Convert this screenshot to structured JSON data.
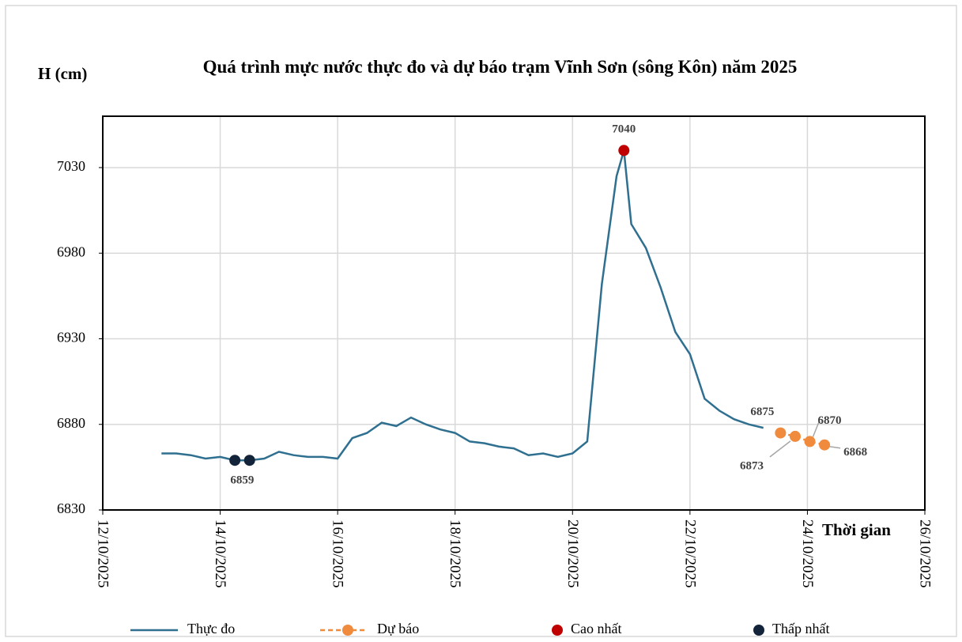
{
  "chart_data": {
    "type": "line",
    "title": "Quá trình mực nước thực đo và dự báo trạm Vĩnh Sơn (sông Kôn) năm 2025",
    "y_label": "H (cm)",
    "x_label": "Thời gian",
    "series": [
      {
        "name": "Thực đo",
        "color": "#2f6f8f",
        "style": "solid",
        "x": [
          "2025-10-13T00:00",
          "2025-10-13T06:00",
          "2025-10-13T12:00",
          "2025-10-13T18:00",
          "2025-10-14T00:00",
          "2025-10-14T06:00",
          "2025-10-14T12:00",
          "2025-10-14T18:00",
          "2025-10-15T00:00",
          "2025-10-15T06:00",
          "2025-10-15T12:00",
          "2025-10-15T18:00",
          "2025-10-16T00:00",
          "2025-10-16T06:00",
          "2025-10-16T12:00",
          "2025-10-16T18:00",
          "2025-10-17T00:00",
          "2025-10-17T06:00",
          "2025-10-17T12:00",
          "2025-10-17T18:00",
          "2025-10-18T00:00",
          "2025-10-18T06:00",
          "2025-10-18T12:00",
          "2025-10-18T18:00",
          "2025-10-19T00:00",
          "2025-10-19T06:00",
          "2025-10-19T12:00",
          "2025-10-19T18:00",
          "2025-10-20T00:00",
          "2025-10-20T06:00",
          "2025-10-20T12:00",
          "2025-10-20T18:00",
          "2025-10-20T21:00",
          "2025-10-21T00:00",
          "2025-10-21T06:00",
          "2025-10-21T12:00",
          "2025-10-21T18:00",
          "2025-10-22T00:00",
          "2025-10-22T06:00",
          "2025-10-22T12:00",
          "2025-10-22T18:00",
          "2025-10-23T00:00",
          "2025-10-23T06:00"
        ],
        "values": [
          6863,
          6863,
          6862,
          6860,
          6861,
          6859,
          6859,
          6860,
          6864,
          6862,
          6861,
          6861,
          6860,
          6872,
          6875,
          6881,
          6879,
          6884,
          6880,
          6877,
          6875,
          6870,
          6869,
          6867,
          6866,
          6862,
          6863,
          6861,
          6863,
          6870,
          6962,
          7025,
          7040,
          6997,
          6983,
          6960,
          6934,
          6921,
          6895,
          6888,
          6883,
          6880,
          6878
        ]
      },
      {
        "name": "Dự báo",
        "color": "#f08a3c",
        "style": "dashed",
        "marker": true,
        "x": [
          "2025-10-23T13:00",
          "2025-10-23T19:00",
          "2025-10-24T01:00",
          "2025-10-24T07:00"
        ],
        "values": [
          6875,
          6873,
          6870,
          6868
        ]
      },
      {
        "name": "Cao nhất",
        "color": "#c00000",
        "style": "none",
        "marker": true,
        "x": [
          "2025-10-20T21:00"
        ],
        "values": [
          7040
        ]
      },
      {
        "name": "Thấp nhất",
        "color": "#13233a",
        "style": "none",
        "marker": true,
        "x": [
          "2025-10-14T06:00",
          "2025-10-14T12:00"
        ],
        "values": [
          6859,
          6859
        ]
      }
    ],
    "xlim": [
      "2025-10-12T00:00",
      "2025-10-26T00:00"
    ],
    "xticks": [
      {
        "value": "2025-10-12T00:00",
        "label": "12/10/2025"
      },
      {
        "value": "2025-10-14T00:00",
        "label": "14/10/2025"
      },
      {
        "value": "2025-10-16T00:00",
        "label": "16/10/2025"
      },
      {
        "value": "2025-10-18T00:00",
        "label": "18/10/2025"
      },
      {
        "value": "2025-10-20T00:00",
        "label": "20/10/2025"
      },
      {
        "value": "2025-10-22T00:00",
        "label": "22/10/2025"
      },
      {
        "value": "2025-10-24T00:00",
        "label": "24/10/2025"
      },
      {
        "value": "2025-10-26T00:00",
        "label": "26/10/2025"
      }
    ],
    "ylim": [
      6830,
      7060
    ],
    "yticks": [
      6830,
      6880,
      6930,
      6980,
      7030
    ],
    "grid": true,
    "legend": "bottom"
  }
}
